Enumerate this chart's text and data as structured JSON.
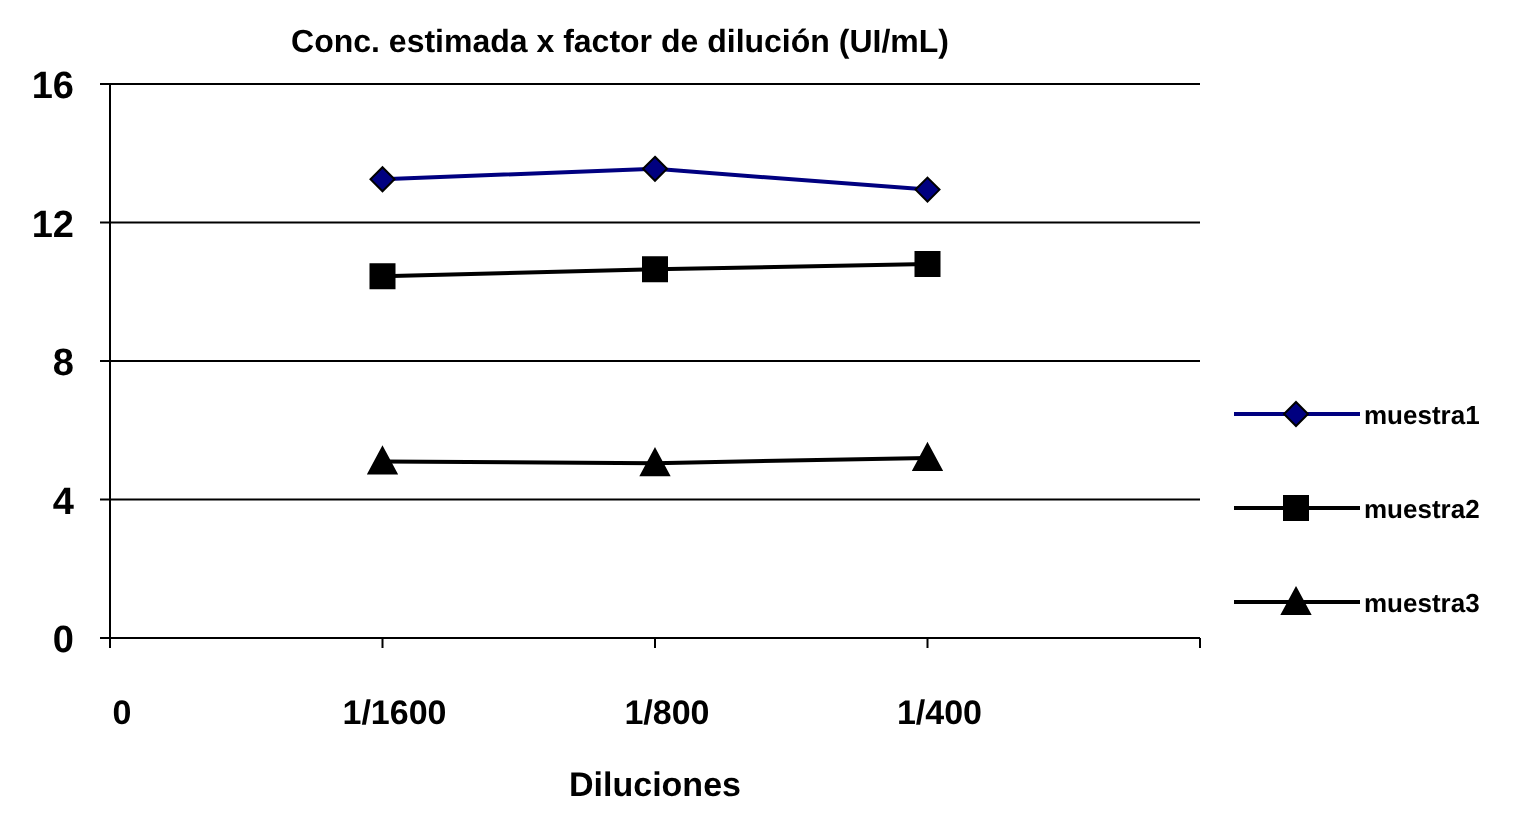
{
  "chart_data": {
    "type": "line",
    "title": "Conc. estimada x factor de dilución (UI/mL)",
    "xlabel": "Diluciones",
    "categories": [
      "0",
      "1/1600",
      "1/800",
      "1/400",
      null
    ],
    "series": [
      {
        "name": "muestra1",
        "color": "#000080",
        "marker": "diamond",
        "values": [
          null,
          13.25,
          13.55,
          12.95,
          null
        ]
      },
      {
        "name": "muestra2",
        "color": "#000000",
        "marker": "square",
        "values": [
          null,
          10.45,
          10.65,
          10.8,
          null
        ]
      },
      {
        "name": "muestra3",
        "color": "#000000",
        "marker": "triangle",
        "values": [
          null,
          5.1,
          5.05,
          5.2,
          null
        ]
      }
    ],
    "ylim": [
      0,
      16
    ],
    "yticks": [
      0,
      4,
      8,
      12,
      16
    ],
    "grid": "y",
    "legend": "right"
  }
}
